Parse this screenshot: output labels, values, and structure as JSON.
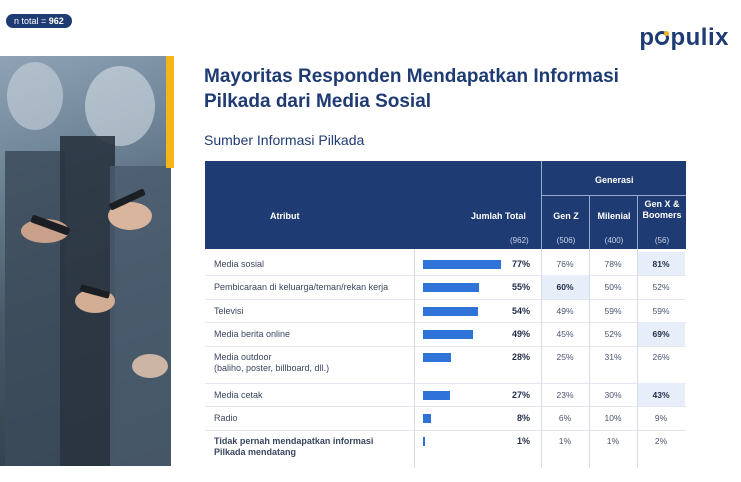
{
  "badge": {
    "prefix": "n total = ",
    "value": "962"
  },
  "logo": {
    "before": "p",
    "after": "pulix"
  },
  "title": "Mayoritas Responden Mendapatkan Informasi Pilkada dari Media Sosial",
  "subtitle": "Sumber Informasi Pilkada",
  "chart_data": {
    "type": "table",
    "title": "Sumber Informasi Pilkada",
    "header": {
      "atribut": "Atribut",
      "jumlah_total": "Jumlah Total",
      "generasi": "Generasi",
      "total_n": "(962)"
    },
    "columns": [
      {
        "name": "Gen Z",
        "n": "(506)"
      },
      {
        "name": "Milenial",
        "n": "(400)"
      },
      {
        "name": "Gen X & Boomers",
        "n": "(56)"
      }
    ],
    "rows": [
      {
        "label": "Media sosial",
        "total": 77,
        "total_label": "77%",
        "cells": [
          "76%",
          "78%",
          "81%"
        ],
        "highlight": [
          false,
          false,
          true
        ]
      },
      {
        "label": "Pembicaraan di keluarga/teman/rekan kerja",
        "total": 55,
        "total_label": "55%",
        "cells": [
          "60%",
          "50%",
          "52%"
        ],
        "highlight": [
          true,
          false,
          false
        ]
      },
      {
        "label": "Televisi",
        "total": 54,
        "total_label": "54%",
        "cells": [
          "49%",
          "59%",
          "59%"
        ],
        "highlight": [
          false,
          false,
          false
        ]
      },
      {
        "label": "Media berita online",
        "total": 49,
        "total_label": "49%",
        "cells": [
          "45%",
          "52%",
          "69%"
        ],
        "highlight": [
          false,
          false,
          true
        ]
      },
      {
        "label": "Media outdoor",
        "sublabel": "(baliho, poster, billboard, dll.)",
        "total": 28,
        "total_label": "28%",
        "cells": [
          "25%",
          "31%",
          "26%"
        ],
        "highlight": [
          false,
          false,
          false
        ]
      },
      {
        "label": "Media cetak",
        "total": 27,
        "total_label": "27%",
        "cells": [
          "23%",
          "30%",
          "43%"
        ],
        "highlight": [
          false,
          false,
          true
        ]
      },
      {
        "label": "Radio",
        "total": 8,
        "total_label": "8%",
        "cells": [
          "6%",
          "10%",
          "9%"
        ],
        "highlight": [
          false,
          false,
          false
        ]
      },
      {
        "label": "Tidak pernah mendapatkan informasi",
        "sublabel": "Pilkada mendatang",
        "bold": true,
        "total": 1,
        "total_label": "1%",
        "cells": [
          "1%",
          "1%",
          "2%"
        ],
        "highlight": [
          false,
          false,
          false
        ]
      }
    ]
  },
  "colors": {
    "navy": "#1f3b73",
    "bar": "#2f73d8",
    "accent": "#f4b41a",
    "highlight": "#e8eef9"
  }
}
